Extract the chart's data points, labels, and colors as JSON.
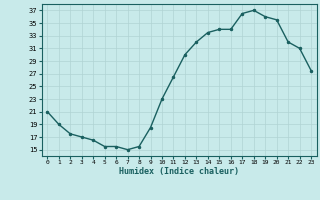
{
  "x": [
    0,
    1,
    2,
    3,
    4,
    5,
    6,
    7,
    8,
    9,
    10,
    11,
    12,
    13,
    14,
    15,
    16,
    17,
    18,
    19,
    20,
    21,
    22,
    23
  ],
  "y": [
    21,
    19,
    17.5,
    17,
    16.5,
    15.5,
    15.5,
    15,
    15.5,
    18.5,
    23,
    26.5,
    30,
    32,
    33.5,
    34,
    34,
    36.5,
    37,
    36,
    35.5,
    32,
    31,
    27.5
  ],
  "line_color": "#1a6060",
  "marker_color": "#1a6060",
  "bg_color": "#c8eaea",
  "grid_color": "#b0d4d4",
  "xlabel": "Humidex (Indice chaleur)",
  "yticks": [
    15,
    17,
    19,
    21,
    23,
    25,
    27,
    29,
    31,
    33,
    35,
    37
  ],
  "xticks": [
    0,
    1,
    2,
    3,
    4,
    5,
    6,
    7,
    8,
    9,
    10,
    11,
    12,
    13,
    14,
    15,
    16,
    17,
    18,
    19,
    20,
    21,
    22,
    23
  ],
  "ylim": [
    14,
    38
  ],
  "xlim": [
    -0.5,
    23.5
  ]
}
